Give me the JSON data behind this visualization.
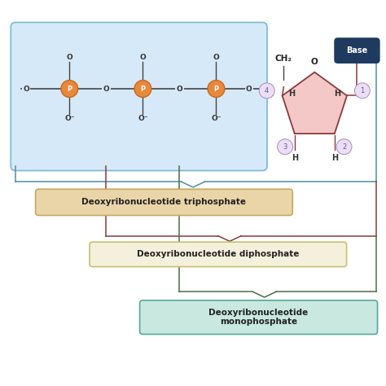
{
  "bg_color": "#ffffff",
  "phosphate_box_color": "#d6e9f8",
  "phosphate_box_edge": "#7ab8d4",
  "sugar_fill": "#f5c8c8",
  "sugar_edge": "#8B3a3a",
  "base_box_color": "#1e3a5f",
  "base_text_color": "#ffffff",
  "p_circle_color": "#e8883a",
  "p_circle_edge": "#c86820",
  "number_circle_color": "#ecdff5",
  "number_circle_edge": "#a888c8",
  "tri_box_bg": "#ead5a8",
  "tri_box_edge": "#c8a860",
  "di_box_bg": "#f5f0dc",
  "di_box_edge": "#c8c070",
  "mono_box_bg": "#c8e8e0",
  "mono_box_edge": "#58a898",
  "line_teal": "#4a8fa8",
  "line_red": "#8B3a3a",
  "line_green": "#4a7040",
  "title_tri": "Deoxyribonucleotide triphosphate",
  "title_di": "Deoxyribonucleotide diphosphate",
  "title_mono": "Deoxyribonucleotide\nmonophosphate",
  "backbone_color": "#444444",
  "o_text_color": "#333333"
}
